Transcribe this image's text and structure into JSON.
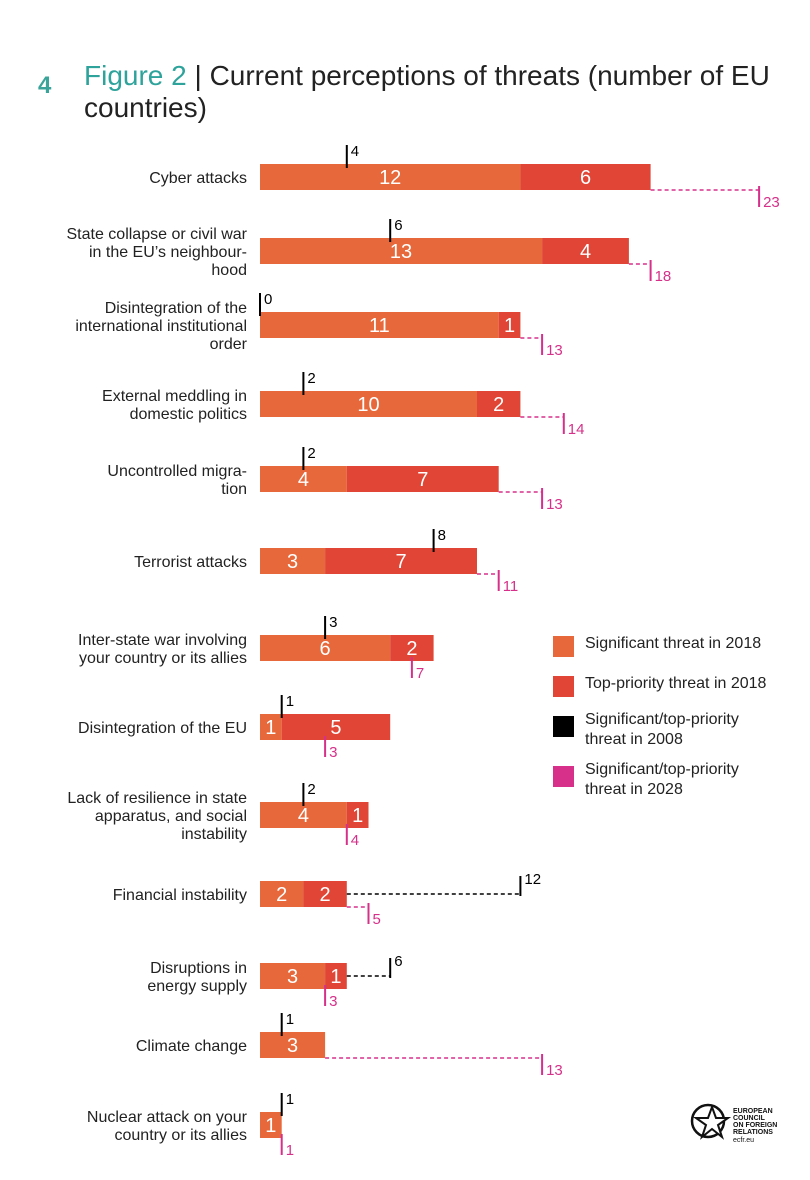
{
  "header": {
    "number": "4",
    "figure": "Figure 2",
    "separator": " | ",
    "title": "Current perceptions of threats (number of EU countries)"
  },
  "colors": {
    "significant": "#e7683a",
    "top_priority": "#e04535",
    "y2008": "#000000",
    "y2028": "#d6308a",
    "accent": "#2ea39b"
  },
  "legend": [
    {
      "label": "Significant threat in 2018",
      "color": "#e7683a"
    },
    {
      "label": "Top-priority threat in 2018",
      "color": "#e04535"
    },
    {
      "label": "Significant/top-priority threat in 2008",
      "color": "#000000"
    },
    {
      "label": "Significant/top-priority threat in 2028",
      "color": "#d6308a"
    }
  ],
  "logo": {
    "lines": [
      "EUROPEAN",
      "COUNCIL",
      "ON FOREIGN",
      "RELATIONS"
    ],
    "site": "ecfr.eu"
  },
  "chart_data": {
    "type": "bar",
    "orientation": "horizontal",
    "stacked": true,
    "categories": [
      [
        "Cyber attacks"
      ],
      [
        "State collapse or civil war",
        "in the EU’s neighbour-",
        "hood"
      ],
      [
        "Disintegration of the",
        "international institutional",
        "order"
      ],
      [
        "External meddling in",
        "domestic politics"
      ],
      [
        "Uncontrolled migra-",
        "tion"
      ],
      [
        "Terrorist attacks"
      ],
      [
        "Inter-state war involving",
        "your country or its allies"
      ],
      [
        "Disintegration of the EU"
      ],
      [
        "Lack of resilience in state",
        "apparatus, and social",
        "instability"
      ],
      [
        "Financial instability"
      ],
      [
        "Disruptions in",
        "energy supply"
      ],
      [
        "Climate change"
      ],
      [
        "Nuclear attack on your",
        "country or its allies"
      ]
    ],
    "series": [
      {
        "name": "Significant threat in 2018",
        "values": [
          12,
          13,
          11,
          10,
          4,
          3,
          6,
          1,
          4,
          2,
          3,
          3,
          1
        ]
      },
      {
        "name": "Top-priority threat in 2018",
        "values": [
          6,
          4,
          1,
          2,
          7,
          7,
          2,
          5,
          1,
          2,
          1,
          0,
          0
        ]
      },
      {
        "name": "Significant/top-priority threat in 2008",
        "values": [
          4,
          6,
          0,
          2,
          2,
          8,
          3,
          1,
          2,
          12,
          6,
          1,
          1
        ]
      },
      {
        "name": "Significant/top-priority threat in 2028",
        "values": [
          23,
          18,
          13,
          14,
          13,
          11,
          7,
          3,
          4,
          5,
          3,
          13,
          1
        ]
      }
    ]
  }
}
